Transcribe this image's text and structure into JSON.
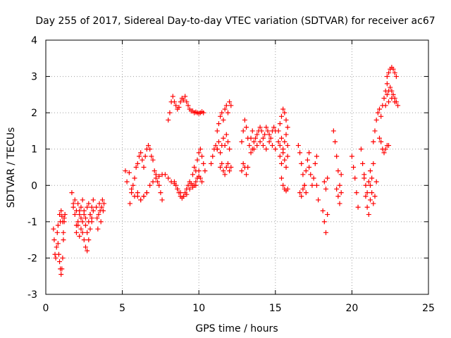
{
  "chart_data": {
    "type": "scatter",
    "title": "Day 255 of 2017, Sidereal Day-to-day VTEC variation (SDTVAR) for receiver ac67",
    "xlabel": "GPS time / hours",
    "ylabel": "SDTVAR / TECUs",
    "xlim": [
      0,
      25
    ],
    "ylim": [
      -3,
      4
    ],
    "xticks": [
      "0",
      "5",
      "10",
      "15",
      "20",
      "25"
    ],
    "yticks": [
      "-3",
      "-2",
      "-1",
      "0",
      "1",
      "2",
      "3",
      "4"
    ],
    "grid": true,
    "marker": "+",
    "series": [
      {
        "name": "SDTVAR",
        "color": "#ff0000",
        "segments": [
          {
            "x": [
              0.5,
              0.55,
              0.6,
              0.65,
              0.7,
              0.75,
              0.8
            ],
            "y": [
              -1.2,
              -1.5,
              -1.9,
              -2.0,
              -1.7,
              -1.3,
              -1.1
            ]
          },
          {
            "x": [
              0.8,
              0.85,
              0.9,
              0.95,
              1.0,
              1.05,
              1.1,
              1.15,
              1.2
            ],
            "y": [
              -1.6,
              -1.9,
              -2.1,
              -2.3,
              -2.45,
              -2.3,
              -2.0,
              -1.5,
              -0.9
            ]
          },
          {
            "x": [
              0.9,
              0.95,
              1.0,
              1.05,
              1.1,
              1.15,
              1.2,
              1.25
            ],
            "y": [
              -0.8,
              -1.0,
              -0.7,
              -0.85,
              -1.0,
              -1.3,
              -1.0,
              -0.8
            ]
          },
          {
            "x": [
              1.7,
              1.8,
              1.9,
              2.0,
              2.1,
              2.2,
              2.3,
              2.4,
              2.5,
              2.6,
              2.7,
              2.8,
              2.9,
              3.0
            ],
            "y": [
              -0.2,
              -0.5,
              -0.8,
              -1.1,
              -1.0,
              -0.7,
              -0.9,
              -1.3,
              -1.5,
              -1.7,
              -1.8,
              -1.5,
              -1.2,
              -0.9
            ]
          },
          {
            "x": [
              1.8,
              1.9,
              2.0,
              2.1,
              2.2,
              2.3,
              2.4,
              2.5,
              2.6,
              2.7,
              2.8,
              2.9,
              3.0,
              3.1
            ],
            "y": [
              -0.6,
              -0.4,
              -0.7,
              -0.5,
              -0.8,
              -0.6,
              -0.4,
              -0.7,
              -0.9,
              -0.6,
              -0.5,
              -0.8,
              -0.6,
              -0.4
            ]
          },
          {
            "x": [
              2.0,
              2.1,
              2.2,
              2.3,
              2.4,
              2.5,
              2.6,
              2.7,
              2.8,
              2.9,
              3.0,
              3.1
            ],
            "y": [
              -1.3,
              -1.1,
              -1.4,
              -1.2,
              -1.0,
              -0.8,
              -1.1,
              -1.3,
              -1.0,
              -0.8,
              -1.0,
              -0.7
            ]
          },
          {
            "x": [
              3.3,
              3.35,
              3.4,
              3.45,
              3.5,
              3.55,
              3.6,
              3.65,
              3.7,
              3.75,
              3.8
            ],
            "y": [
              -0.6,
              -0.9,
              -1.2,
              -0.8,
              -0.5,
              -0.7,
              -1.0,
              -0.6,
              -0.4,
              -0.7,
              -0.5
            ]
          },
          {
            "x": [
              5.2,
              5.3,
              5.45
            ],
            "y": [
              0.4,
              0.1,
              0.35
            ]
          },
          {
            "x": [
              5.5,
              5.6,
              5.7,
              5.8,
              5.9,
              6.0,
              6.1,
              6.2,
              6.3,
              6.4,
              6.5,
              6.6,
              6.7,
              6.8,
              6.9,
              7.0,
              7.1,
              7.2,
              7.3,
              7.4,
              7.5,
              7.6
            ],
            "y": [
              -0.5,
              -0.2,
              0.0,
              0.2,
              0.5,
              0.6,
              0.8,
              0.9,
              0.7,
              0.5,
              0.8,
              1.0,
              1.1,
              1.0,
              0.8,
              0.7,
              0.4,
              0.3,
              0.1,
              0.0,
              -0.2,
              -0.4
            ]
          },
          {
            "x": [
              6.0,
              6.2,
              6.4,
              6.6,
              6.8,
              7.0,
              7.2,
              7.4,
              7.6,
              7.8,
              8.0,
              8.2,
              8.4,
              8.6,
              8.8,
              9.0,
              9.2,
              9.4,
              9.6,
              9.8,
              10.0
            ],
            "y": [
              -0.3,
              -0.4,
              -0.3,
              -0.2,
              0.0,
              0.1,
              0.2,
              0.25,
              0.3,
              0.3,
              0.2,
              0.1,
              0.05,
              -0.1,
              -0.2,
              -0.3,
              -0.25,
              -0.1,
              0.0,
              0.1,
              0.25
            ]
          },
          {
            "x": [
              5.6,
              5.8,
              6.0,
              6.2,
              6.4,
              6.6
            ],
            "y": [
              -0.1,
              -0.3,
              -0.2,
              -0.4,
              -0.3,
              -0.2
            ]
          },
          {
            "x": [
              8.0,
              8.1,
              8.2,
              8.3,
              8.4,
              8.5,
              8.6,
              8.7,
              8.8,
              8.9,
              9.0,
              9.1,
              9.2,
              9.3,
              9.4,
              9.5
            ],
            "y": [
              1.8,
              2.0,
              2.3,
              2.45,
              2.3,
              2.2,
              2.1,
              2.15,
              2.3,
              2.4,
              2.35,
              2.45,
              2.3,
              2.2,
              2.1,
              2.05
            ]
          },
          {
            "x": [
              9.6,
              9.7,
              9.8,
              9.9,
              10.0,
              10.1,
              10.2,
              10.3
            ],
            "y": [
              2.05,
              2.0,
              2.02,
              2.0,
              1.98,
              2.0,
              2.03,
              2.0
            ]
          },
          {
            "x": [
              8.4,
              8.5,
              8.6,
              8.7,
              8.8,
              8.9,
              9.0,
              9.1,
              9.2,
              9.3,
              9.4,
              9.5,
              9.6,
              9.7
            ],
            "y": [
              0.1,
              0.0,
              -0.1,
              -0.2,
              -0.3,
              -0.35,
              -0.3,
              -0.2,
              -0.1,
              0.0,
              0.1,
              0.05,
              -0.05,
              0.0
            ]
          },
          {
            "x": [
              9.6,
              9.7,
              9.8,
              9.9,
              10.0,
              10.1,
              10.2,
              10.3,
              10.4
            ],
            "y": [
              0.3,
              0.5,
              0.4,
              0.7,
              0.9,
              1.0,
              0.8,
              0.6,
              0.4
            ]
          },
          {
            "x": [
              9.8,
              9.9,
              10.0,
              10.1,
              10.2
            ],
            "y": [
              0.0,
              0.2,
              0.4,
              0.2,
              0.1
            ]
          },
          {
            "x": [
              10.8,
              10.9,
              11.0,
              11.1,
              11.2
            ],
            "y": [
              0.6,
              0.8,
              1.0,
              1.1,
              1.0
            ]
          },
          {
            "x": [
              11.2,
              11.3,
              11.4,
              11.5,
              11.6,
              11.7,
              11.8,
              11.9,
              12.0,
              12.1
            ],
            "y": [
              1.5,
              1.7,
              1.9,
              2.0,
              1.8,
              2.1,
              2.2,
              2.0,
              2.3,
              2.2
            ]
          },
          {
            "x": [
              11.2,
              11.3,
              11.4,
              11.5,
              11.6,
              11.7,
              11.8,
              11.9,
              12.0
            ],
            "y": [
              1.0,
              1.2,
              0.9,
              1.1,
              1.3,
              1.1,
              1.4,
              1.2,
              1.0
            ]
          },
          {
            "x": [
              11.4,
              11.5,
              11.6,
              11.7,
              11.8,
              11.9,
              12.0,
              12.1
            ],
            "y": [
              0.5,
              0.6,
              0.4,
              0.3,
              0.5,
              0.6,
              0.4,
              0.5
            ]
          },
          {
            "x": [
              12.8,
              12.9,
              13.0,
              13.1,
              13.2,
              13.3,
              13.4,
              13.5
            ],
            "y": [
              1.2,
              1.5,
              1.8,
              1.6,
              1.3,
              1.1,
              1.3,
              1.5
            ]
          },
          {
            "x": [
              12.8,
              12.9,
              13.0,
              13.1,
              13.2
            ],
            "y": [
              0.4,
              0.6,
              0.5,
              0.3,
              0.5
            ]
          },
          {
            "x": [
              13.4,
              13.5,
              13.6,
              13.7,
              13.8,
              13.9,
              14.0,
              14.1,
              14.2,
              14.3,
              14.4,
              14.5,
              14.6,
              14.7,
              14.8,
              14.9,
              15.0
            ],
            "y": [
              0.9,
              1.0,
              1.2,
              1.3,
              1.4,
              1.5,
              1.6,
              1.5,
              1.3,
              1.4,
              1.6,
              1.5,
              1.4,
              1.3,
              1.5,
              1.6,
              1.5
            ]
          },
          {
            "x": [
              13.6,
              13.8,
              14.0,
              14.2,
              14.4,
              14.6,
              14.8,
              15.0
            ],
            "y": [
              1.0,
              1.1,
              1.2,
              1.1,
              1.0,
              1.2,
              1.1,
              1.0
            ]
          },
          {
            "x": [
              15.2,
              15.3,
              15.4,
              15.5,
              15.6,
              15.7,
              15.8
            ],
            "y": [
              1.5,
              1.7,
              1.9,
              2.1,
              2.0,
              1.8,
              1.6
            ]
          },
          {
            "x": [
              15.2,
              15.3,
              15.4,
              15.5,
              15.6,
              15.7,
              15.8
            ],
            "y": [
              1.2,
              1.1,
              1.3,
              1.0,
              1.2,
              1.4,
              1.1
            ]
          },
          {
            "x": [
              15.3,
              15.4,
              15.5,
              15.6,
              15.7,
              15.8
            ],
            "y": [
              0.8,
              0.6,
              0.9,
              0.7,
              0.5,
              0.8
            ]
          },
          {
            "x": [
              15.4,
              15.5,
              15.6,
              15.7,
              15.8
            ],
            "y": [
              0.2,
              0.0,
              -0.1,
              -0.15,
              -0.1
            ]
          },
          {
            "x": [
              16.5,
              16.6,
              16.7,
              16.8,
              16.9,
              17.0,
              17.1,
              17.2
            ],
            "y": [
              1.1,
              0.9,
              0.6,
              0.3,
              0.0,
              0.4,
              0.7,
              0.9
            ]
          },
          {
            "x": [
              16.6,
              16.7,
              16.8,
              16.9,
              17.0
            ],
            "y": [
              -0.2,
              -0.3,
              -0.1,
              0.0,
              -0.2
            ]
          },
          {
            "x": [
              17.2,
              17.3,
              17.4,
              17.5,
              17.6,
              17.7
            ],
            "y": [
              0.5,
              0.3,
              0.0,
              0.2,
              0.6,
              0.8
            ]
          },
          {
            "x": [
              17.7,
              17.8
            ],
            "y": [
              0.0,
              -0.4
            ]
          },
          {
            "x": [
              18.1,
              18.2,
              18.3,
              18.4
            ],
            "y": [
              -0.7,
              -1.0,
              -1.3,
              -0.8
            ]
          },
          {
            "x": [
              18.2,
              18.3,
              18.4
            ],
            "y": [
              0.1,
              -0.1,
              0.2
            ]
          },
          {
            "x": [
              18.8,
              18.9,
              19.0,
              19.1,
              19.2,
              19.3
            ],
            "y": [
              1.5,
              1.2,
              0.8,
              0.4,
              0.0,
              0.3
            ]
          },
          {
            "x": [
              19.0,
              19.1,
              19.2,
              19.3
            ],
            "y": [
              -0.1,
              -0.3,
              -0.5,
              -0.2
            ]
          },
          {
            "x": [
              20.0,
              20.1,
              20.2,
              20.3,
              20.4
            ],
            "y": [
              0.8,
              0.5,
              0.2,
              -0.2,
              -0.6
            ]
          },
          {
            "x": [
              20.6,
              20.7,
              20.8,
              20.9,
              21.0,
              21.1,
              21.2,
              21.3,
              21.4
            ],
            "y": [
              1.0,
              0.6,
              0.2,
              -0.3,
              -0.6,
              -0.8,
              -0.4,
              0.2,
              0.6
            ]
          },
          {
            "x": [
              20.8,
              20.9,
              21.0,
              21.1,
              21.2
            ],
            "y": [
              0.3,
              0.0,
              -0.2,
              0.1,
              0.4
            ]
          },
          {
            "x": [
              21.4,
              21.5,
              21.6,
              21.7,
              21.8,
              21.9,
              22.0,
              22.1,
              22.2,
              22.3
            ],
            "y": [
              1.2,
              1.5,
              1.8,
              2.0,
              2.1,
              1.9,
              2.2,
              2.4,
              2.6,
              2.8
            ]
          },
          {
            "x": [
              21.2,
              21.3,
              21.4,
              21.5,
              21.6
            ],
            "y": [
              0.0,
              -0.2,
              -0.5,
              -0.3,
              0.1
            ]
          },
          {
            "x": [
              21.8,
              21.9,
              22.0,
              22.1,
              22.2,
              22.3,
              22.4
            ],
            "y": [
              1.3,
              1.2,
              1.0,
              0.9,
              1.0,
              1.1,
              1.1
            ]
          },
          {
            "x": [
              22.3,
              22.4,
              22.5,
              22.6,
              22.7,
              22.8,
              22.9
            ],
            "y": [
              3.0,
              3.1,
              3.2,
              3.25,
              3.2,
              3.1,
              3.0
            ]
          },
          {
            "x": [
              22.3,
              22.4,
              22.5,
              22.6,
              22.7,
              22.8,
              22.9
            ],
            "y": [
              2.5,
              2.6,
              2.7,
              2.6,
              2.5,
              2.4,
              2.3
            ]
          },
          {
            "x": [
              22.2,
              22.4,
              22.6,
              22.8,
              23.0
            ],
            "y": [
              2.2,
              2.3,
              2.4,
              2.3,
              2.2
            ]
          }
        ]
      }
    ]
  }
}
